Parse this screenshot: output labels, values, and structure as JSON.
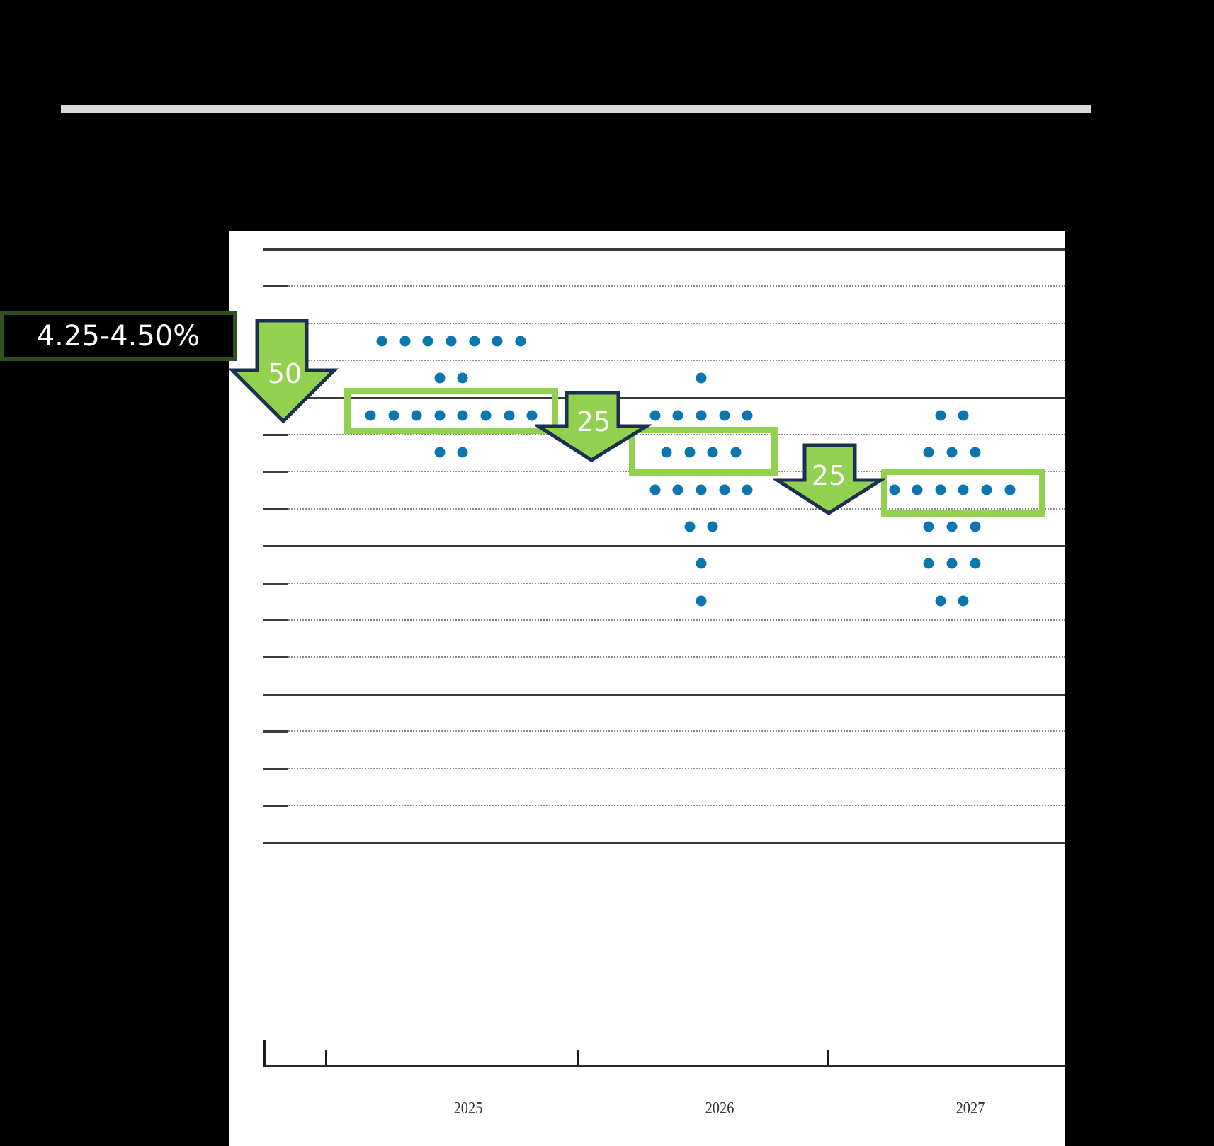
{
  "annotations": {
    "current_range": "4.25-4.50%",
    "cuts": [
      {
        "label": "50",
        "from": "current",
        "to": "2025 median"
      },
      {
        "label": "25",
        "from": "2025 median",
        "to": "2026 median"
      },
      {
        "label": "25",
        "from": "2026 median",
        "to": "2027 median"
      }
    ],
    "colors": {
      "dot": "#0a76b0",
      "highlight_box": "#92d050",
      "arrow_fill": "#92d050",
      "arrow_outline": "#1b2f52",
      "label_border": "#2f4f1f"
    }
  },
  "axis": {
    "years": [
      "2025",
      "2026",
      "2027"
    ]
  },
  "chart_data": {
    "type": "scatter",
    "title": "",
    "xlabel": "",
    "ylabel": "",
    "categories": [
      "2025",
      "2026",
      "2027"
    ],
    "ylim": [
      1.0,
      5.0
    ],
    "grid": {
      "solid_every": 1.0,
      "dotted_every": 0.25
    },
    "series": [
      {
        "name": "2025",
        "points": [
          {
            "rate": 4.375,
            "count": 7
          },
          {
            "rate": 4.125,
            "count": 2
          },
          {
            "rate": 3.875,
            "count": 8
          },
          {
            "rate": 3.625,
            "count": 2
          }
        ],
        "median": 3.875
      },
      {
        "name": "2026",
        "points": [
          {
            "rate": 4.125,
            "count": 1
          },
          {
            "rate": 3.875,
            "count": 5
          },
          {
            "rate": 3.625,
            "count": 4
          },
          {
            "rate": 3.375,
            "count": 5
          },
          {
            "rate": 3.125,
            "count": 2
          },
          {
            "rate": 2.875,
            "count": 1
          },
          {
            "rate": 2.625,
            "count": 1
          }
        ],
        "median": 3.625
      },
      {
        "name": "2027",
        "points": [
          {
            "rate": 3.875,
            "count": 2
          },
          {
            "rate": 3.625,
            "count": 3
          },
          {
            "rate": 3.375,
            "count": 6
          },
          {
            "rate": 3.125,
            "count": 3
          },
          {
            "rate": 2.875,
            "count": 3
          },
          {
            "rate": 2.625,
            "count": 2
          }
        ],
        "median": 3.375
      }
    ],
    "annotations": [
      "4.25-4.50%",
      "50",
      "25",
      "25"
    ]
  }
}
